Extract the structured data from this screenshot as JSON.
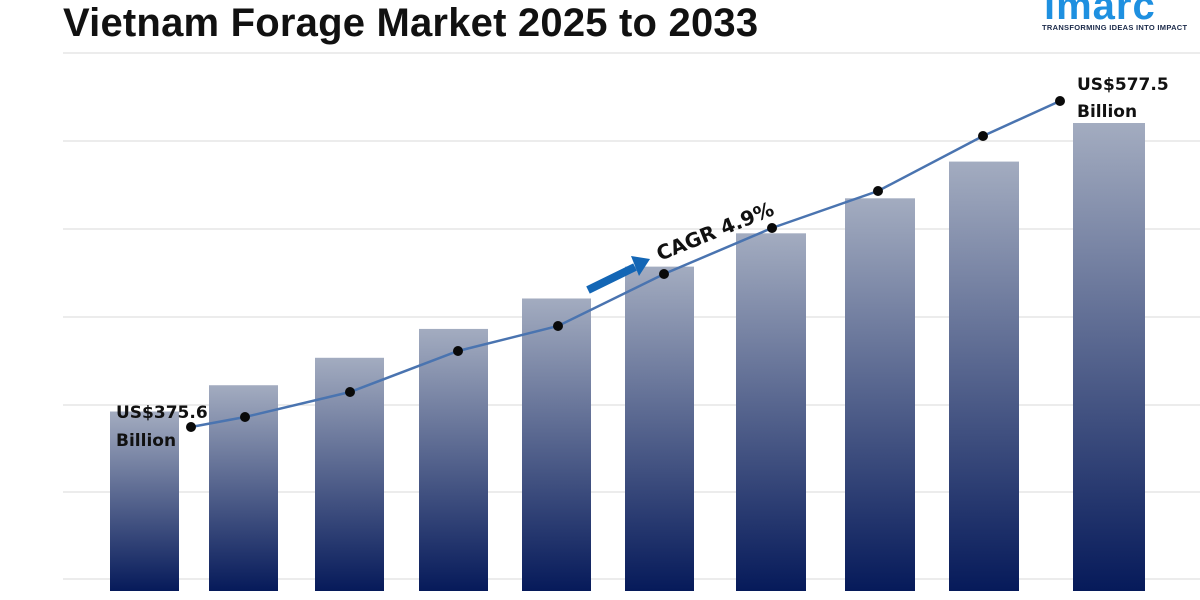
{
  "title": "Vietnam Forage Market 2025 to 2033",
  "logo": {
    "word": "imarc",
    "tagline": "TRANSFORMING IDEAS INTO IMPACT",
    "color": "#1e90e0"
  },
  "chart_data": {
    "type": "bar",
    "title": "Vietnam Forage Market 2025 to 2033",
    "xlabel": "",
    "ylabel": "",
    "categories": [
      "",
      "",
      "",
      "",
      "",
      "",
      "",
      "",
      "",
      ""
    ],
    "values": [
      375.6,
      394.0,
      413.2,
      433.4,
      454.7,
      477.0,
      500.3,
      524.8,
      550.5,
      577.5
    ],
    "trend_line": [
      375.6,
      394.0,
      413.2,
      433.4,
      454.7,
      477.0,
      500.3,
      524.8,
      550.5,
      577.5
    ],
    "ylim": [
      250,
      600
    ],
    "grid": true,
    "legend": "none",
    "annotations": {
      "start_value": "US$375.6",
      "start_unit": "Billion",
      "end_value": "US$577.5",
      "end_unit": "Billion",
      "cagr": "CAGR 4.9%"
    },
    "colors": {
      "bar_top": "#a3acc0",
      "bar_bottom": "#061a5a",
      "line": "#4a74b0",
      "marker": "#0a0a0a",
      "arrow": "#1366b5",
      "grid": "#d9d9d9"
    }
  }
}
